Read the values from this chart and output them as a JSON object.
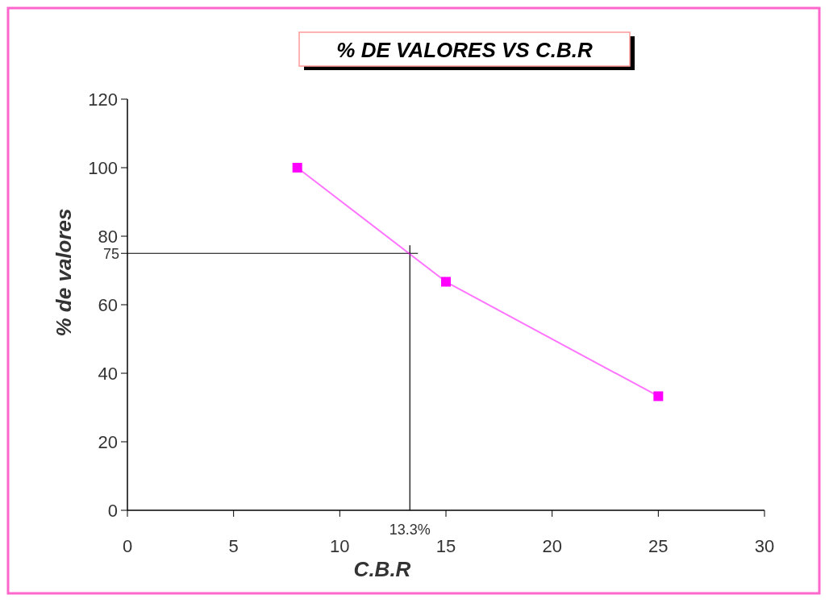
{
  "chart_data": {
    "type": "line",
    "title": "% DE VALORES VS C.B.R",
    "xlabel": "C.B.R",
    "ylabel": "% de valores",
    "x": [
      8,
      15,
      25
    ],
    "series": [
      {
        "color": "#ff00ff",
        "values": [
          100,
          66.7,
          33.3
        ]
      }
    ],
    "xlim": [
      0,
      30
    ],
    "xticks": [
      0,
      5,
      10,
      15,
      20,
      25,
      30
    ],
    "ylim": [
      0,
      120
    ],
    "yticks": [
      0,
      20,
      40,
      60,
      80,
      100,
      120
    ],
    "ref_lines": [
      {
        "axis": "y",
        "value": 75,
        "label": "75",
        "color": "#000000"
      },
      {
        "axis": "x",
        "value": 13.3,
        "label": "13.3%",
        "color": "#000000"
      }
    ],
    "marker": "square"
  }
}
